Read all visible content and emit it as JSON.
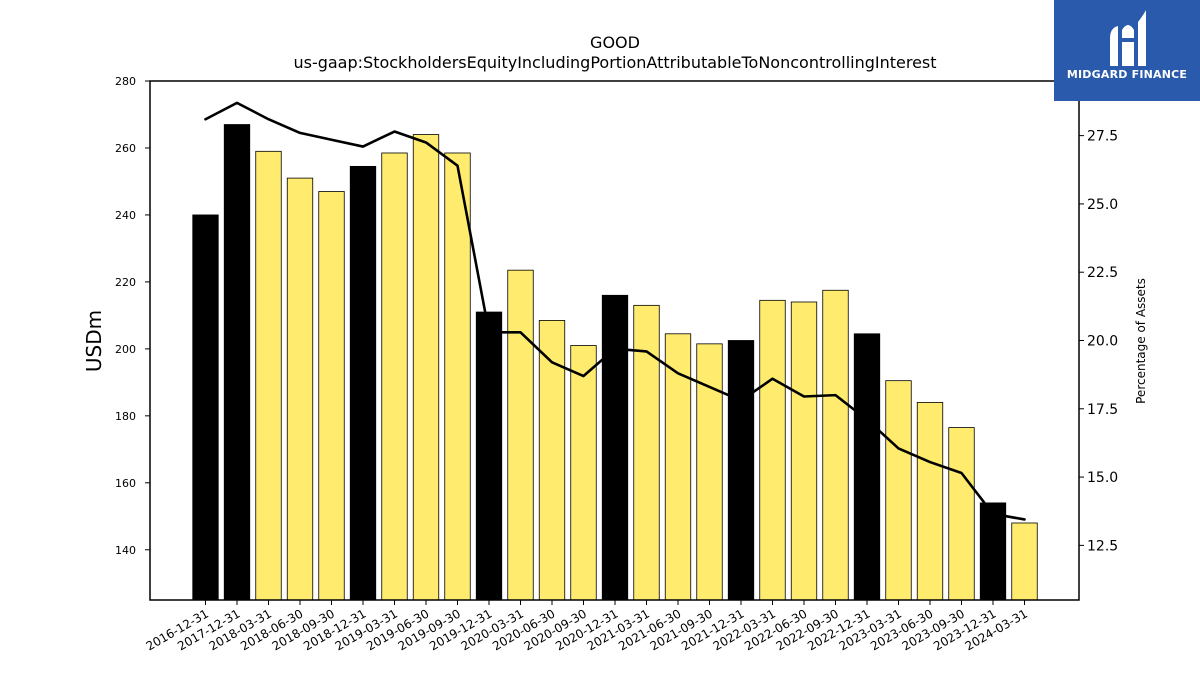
{
  "chart_data": {
    "type": "bar",
    "title": "GOOD",
    "subtitle": "us-gaap:StockholdersEquityIncludingPortionAttributableToNoncontrollingInterest",
    "ylabel": "USDm",
    "y2label": "Percentage of Assets",
    "ylim": [
      125,
      280
    ],
    "y2lim": [
      10.5,
      29.5
    ],
    "yticks": [
      140,
      160,
      180,
      200,
      220,
      240,
      260,
      280
    ],
    "y2ticks": [
      12.5,
      15.0,
      17.5,
      20.0,
      22.5,
      25.0,
      27.5
    ],
    "categories": [
      "2016-12-31",
      "2017-12-31",
      "2018-03-31",
      "2018-06-30",
      "2018-09-30",
      "2018-12-31",
      "2019-03-31",
      "2019-06-30",
      "2019-09-30",
      "2019-12-31",
      "2020-03-31",
      "2020-06-30",
      "2020-09-30",
      "2020-12-31",
      "2021-03-31",
      "2021-06-30",
      "2021-09-30",
      "2021-12-31",
      "2022-03-31",
      "2022-06-30",
      "2022-09-30",
      "2022-12-31",
      "2023-03-31",
      "2023-06-30",
      "2023-09-30",
      "2023-12-31",
      "2024-03-31"
    ],
    "series": [
      {
        "type": "bar",
        "values": [
          240,
          267,
          259,
          251,
          247,
          254.5,
          258.5,
          264,
          258.5,
          211,
          223.5,
          208.5,
          201,
          216,
          213,
          204.5,
          201.5,
          202.5,
          214.5,
          214,
          217.5,
          204.5,
          190.5,
          184,
          176.5,
          154,
          148
        ],
        "annual": [
          true,
          true,
          false,
          false,
          false,
          true,
          false,
          false,
          false,
          true,
          false,
          false,
          false,
          true,
          false,
          false,
          false,
          true,
          false,
          false,
          false,
          true,
          false,
          false,
          false,
          true,
          false
        ]
      },
      {
        "type": "line",
        "axis": "y2",
        "values": [
          28.1,
          28.7,
          28.1,
          27.6,
          27.35,
          27.1,
          27.65,
          27.25,
          26.4,
          20.3,
          20.3,
          19.2,
          18.7,
          19.7,
          19.6,
          18.8,
          18.3,
          17.8,
          18.6,
          17.95,
          18.0,
          17.1,
          16.05,
          15.55,
          15.15,
          13.65,
          13.45
        ]
      }
    ],
    "colors": {
      "annual_bar": "#000000",
      "quarterly_bar": "#ffec6e",
      "line": "#000000"
    },
    "grid": false,
    "legend": "none"
  },
  "logo": {
    "text": "MIDGARD FINANCE"
  }
}
